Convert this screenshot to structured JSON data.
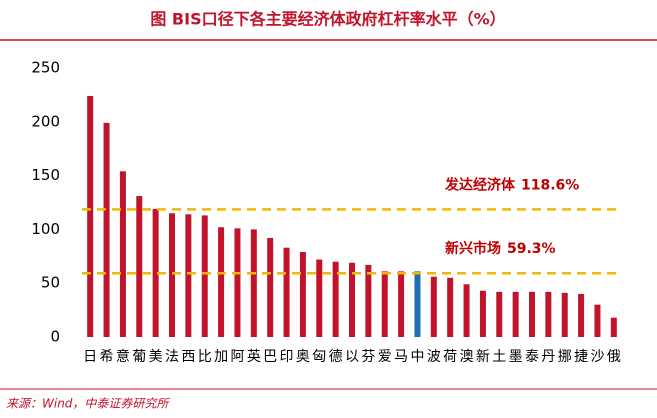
{
  "chart_data": {
    "type": "bar",
    "title": "图 BIS口径下各主要经济体政府杠杆率水平（%）",
    "source": "来源：Wind，中泰证券研究所",
    "categories": [
      "日",
      "希",
      "意",
      "葡",
      "美",
      "法",
      "西",
      "比",
      "加",
      "阿",
      "英",
      "巴",
      "印",
      "奥",
      "匈",
      "德",
      "以",
      "芬",
      "爱",
      "马",
      "中",
      "波",
      "荷",
      "澳",
      "新",
      "土",
      "墨",
      "泰",
      "丹",
      "挪",
      "捷",
      "沙",
      "俄"
    ],
    "values": [
      224,
      199,
      154,
      131,
      119,
      115,
      114,
      113,
      102,
      101,
      100,
      92,
      83,
      79,
      72,
      70,
      69,
      67,
      61,
      61,
      61,
      56,
      55,
      49,
      43,
      42,
      42,
      42,
      42,
      41,
      40,
      30,
      18
    ],
    "colors": [
      "#c0142b",
      "#c0142b",
      "#c0142b",
      "#c0142b",
      "#c0142b",
      "#c0142b",
      "#c0142b",
      "#c0142b",
      "#c0142b",
      "#c0142b",
      "#c0142b",
      "#c0142b",
      "#c0142b",
      "#c0142b",
      "#c0142b",
      "#c0142b",
      "#c0142b",
      "#c0142b",
      "#c0142b",
      "#c0142b",
      "#1f6db3",
      "#c0142b",
      "#c0142b",
      "#c0142b",
      "#c0142b",
      "#c0142b",
      "#c0142b",
      "#c0142b",
      "#c0142b",
      "#c0142b",
      "#c0142b",
      "#c0142b",
      "#c0142b"
    ],
    "reference_lines": [
      {
        "label": "发达经济体",
        "value": 118.6,
        "value_label": "118.6%",
        "color": "#f2b705"
      },
      {
        "label": "新兴市场",
        "value": 59.3,
        "value_label": "59.3%",
        "color": "#f2b705"
      }
    ],
    "ylim": [
      0,
      250
    ],
    "yticks": [
      0,
      50,
      100,
      150,
      200,
      250
    ],
    "grid": false
  }
}
